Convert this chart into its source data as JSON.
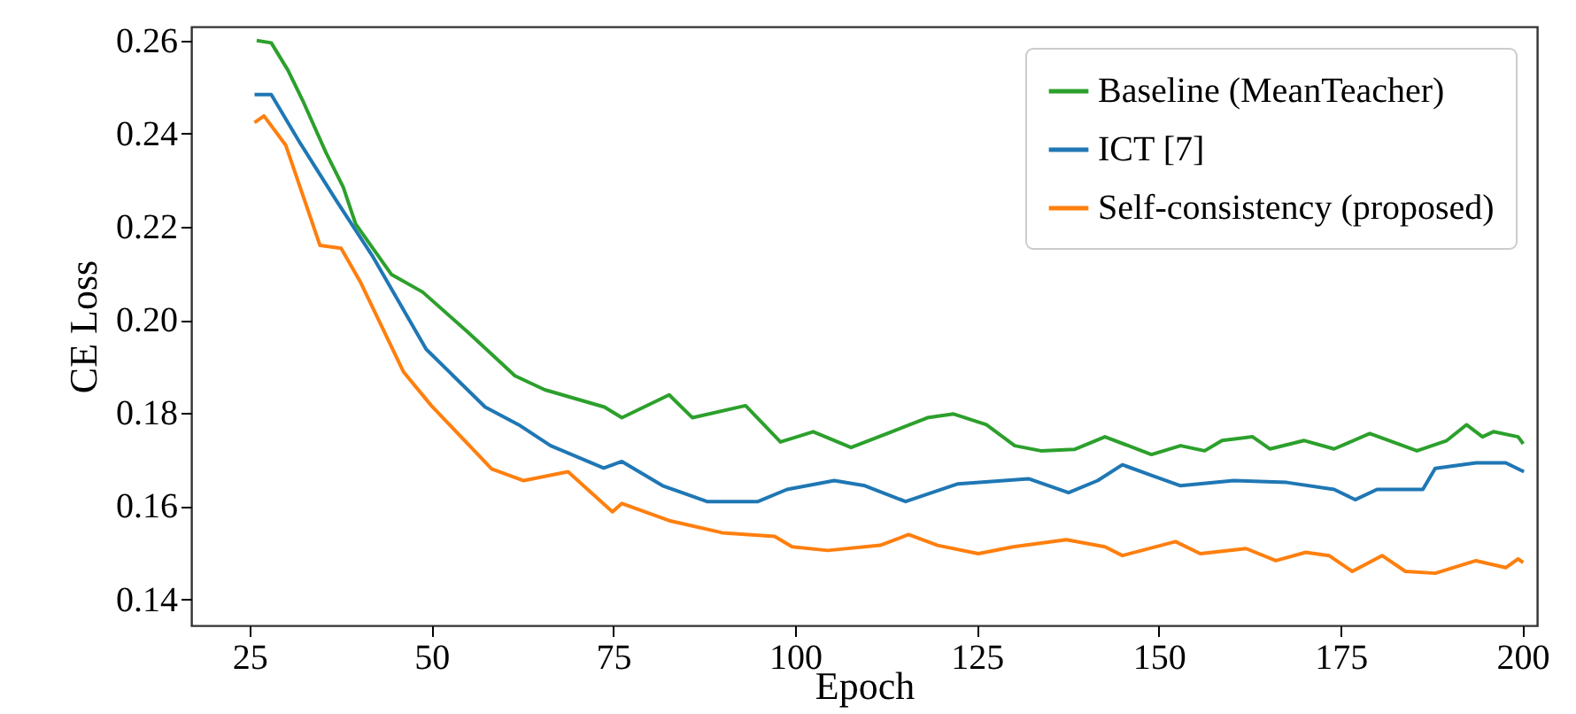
{
  "chart_data": {
    "type": "line",
    "xlabel": "Epoch",
    "ylabel": "CE Loss",
    "xlim": [
      17,
      202
    ],
    "ylim": [
      0.1344,
      0.263
    ],
    "xticks": [
      25,
      50,
      75,
      100,
      125,
      150,
      175,
      200
    ],
    "yticks": [
      {
        "value": 0.14,
        "label": "0.14"
      },
      {
        "value": 0.16,
        "label": "0.16"
      },
      {
        "value": 0.18,
        "label": "0.18"
      },
      {
        "value": 0.2,
        "label": "0.20"
      },
      {
        "value": 0.22,
        "label": "0.22"
      },
      {
        "value": 0.24,
        "label": "0.24"
      },
      {
        "value": 0.26,
        "label": "0.26"
      }
    ],
    "grid": false,
    "legend": "top right",
    "marker": "none",
    "line_style": "solid",
    "series": [
      {
        "name": "Baseline (MeanTeacher)",
        "color": "#2ca02c",
        "x": [
          26,
          28,
          30.3,
          32.3,
          35.5,
          37.9,
          39.6,
          44.5,
          48.8,
          55,
          61.5,
          65.6,
          73.8,
          76.2,
          82.7,
          85.9,
          93.2,
          98,
          102.5,
          107.7,
          113.3,
          118.2,
          121.8,
          126.3,
          130.2,
          133.8,
          138.4,
          142.6,
          149,
          153,
          156.3,
          158.7,
          162.9,
          165.3,
          170,
          174.1,
          179,
          185.5,
          189.6,
          192.3,
          194.5,
          196,
          199.4,
          200.1
        ],
        "values": [
          0.26,
          0.2595,
          0.2536,
          0.2472,
          0.236,
          0.2285,
          0.2206,
          0.2098,
          0.206,
          0.1974,
          0.188,
          0.185,
          0.1813,
          0.179,
          0.1839,
          0.179,
          0.1816,
          0.1738,
          0.176,
          0.1726,
          0.176,
          0.179,
          0.1798,
          0.1775,
          0.173,
          0.1719,
          0.1722,
          0.1749,
          0.1711,
          0.173,
          0.1719,
          0.1741,
          0.1749,
          0.1723,
          0.1741,
          0.1723,
          0.1756,
          0.1719,
          0.1741,
          0.1775,
          0.1749,
          0.176,
          0.1749,
          0.1734
        ]
      },
      {
        "name": "ICT [7]",
        "color": "#1f77b4",
        "x": [
          25.7,
          28,
          32,
          37,
          42,
          49.3,
          57.4,
          62,
          66.4,
          73.7,
          76.2,
          81.8,
          87.9,
          94.9,
          98.9,
          105.4,
          109.6,
          115.2,
          122.4,
          132.1,
          137.6,
          141.6,
          145,
          149,
          153,
          160.3,
          167.6,
          174.1,
          177,
          180,
          186.3,
          188,
          193.6,
          197.7,
          200.2
        ],
        "values": [
          0.2484,
          0.2484,
          0.2379,
          0.2255,
          0.2135,
          0.1937,
          0.1813,
          0.1775,
          0.173,
          0.1682,
          0.1696,
          0.1644,
          0.161,
          0.161,
          0.1636,
          0.1655,
          0.1644,
          0.161,
          0.1648,
          0.1659,
          0.1629,
          0.1655,
          0.1689,
          0.1666,
          0.1644,
          0.1655,
          0.1651,
          0.1636,
          0.1614,
          0.1636,
          0.1636,
          0.1681,
          0.1693,
          0.1693,
          0.1674
        ]
      },
      {
        "name": "Self-consistency (proposed)",
        "color": "#ff7f0e",
        "x": [
          25.7,
          27,
          30,
          34.7,
          37.6,
          40.3,
          46.2,
          50,
          58.3,
          62.7,
          68.8,
          74.9,
          76.2,
          82.7,
          90,
          97.2,
          99.6,
          104.5,
          111.7,
          115.6,
          119.6,
          125.2,
          130,
          137.3,
          142.6,
          145,
          152.3,
          155.7,
          162,
          166.1,
          170.2,
          173.4,
          176.6,
          180.7,
          183.9,
          188,
          193.6,
          197.7,
          199.4,
          200.1
        ],
        "values": [
          0.2424,
          0.2438,
          0.2375,
          0.216,
          0.2154,
          0.208,
          0.1888,
          0.1816,
          0.168,
          0.1655,
          0.1674,
          0.1588,
          0.1606,
          0.1569,
          0.1543,
          0.1535,
          0.1513,
          0.1505,
          0.1516,
          0.1539,
          0.1516,
          0.1498,
          0.1513,
          0.1528,
          0.1513,
          0.1494,
          0.1524,
          0.1498,
          0.1509,
          0.1483,
          0.1501,
          0.1494,
          0.146,
          0.1494,
          0.146,
          0.1456,
          0.1483,
          0.1468,
          0.1487,
          0.1479
        ]
      }
    ]
  }
}
